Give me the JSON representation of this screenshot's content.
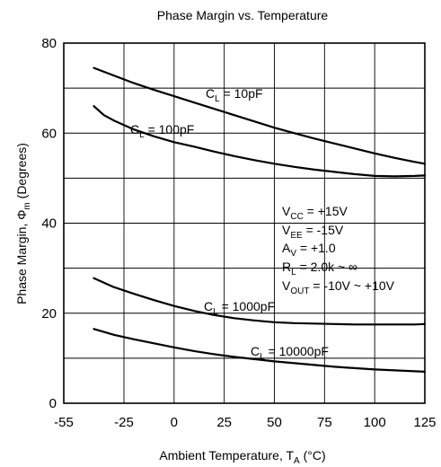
{
  "chart_data": {
    "type": "line",
    "title": "Phase Margin vs. Temperature",
    "xlabel": {
      "main": "Ambient Temperature, T",
      "sub": "A",
      "tail": " (°C)"
    },
    "ylabel": {
      "main": "Phase Margin, Φ",
      "sub": "m",
      "tail": " (Degrees)"
    },
    "xlim": [
      -55,
      125
    ],
    "ylim": [
      0,
      80
    ],
    "xticks": [
      -55,
      -25,
      0,
      25,
      50,
      75,
      100,
      125
    ],
    "yticks": [
      0,
      20,
      40,
      60,
      80
    ],
    "grid": true,
    "series": [
      {
        "name": "CL = 10pF",
        "label": {
          "main": "C",
          "sub": "L",
          "tail": " = 10pF"
        },
        "x": [
          -40,
          -30,
          -20,
          -10,
          0,
          10,
          20,
          30,
          40,
          50,
          60,
          70,
          80,
          90,
          100,
          110,
          120,
          125
        ],
        "y": [
          74.5,
          72.8,
          71.1,
          69.6,
          68.2,
          66.8,
          65.4,
          64.0,
          62.6,
          61.2,
          60.0,
          58.8,
          57.7,
          56.6,
          55.5,
          54.5,
          53.6,
          53.2
        ]
      },
      {
        "name": "CL = 100pF",
        "label": {
          "main": "C",
          "sub": "L",
          "tail": " = 100pF"
        },
        "x": [
          -40,
          -35,
          -30,
          -20,
          -10,
          0,
          10,
          20,
          30,
          40,
          50,
          60,
          70,
          80,
          90,
          100,
          110,
          120,
          125
        ],
        "y": [
          66.0,
          64.0,
          62.8,
          60.8,
          59.3,
          58.0,
          57.0,
          55.9,
          54.9,
          54.0,
          53.2,
          52.5,
          51.9,
          51.4,
          50.9,
          50.5,
          50.4,
          50.5,
          50.6
        ]
      },
      {
        "name": "CL = 1000pF",
        "label": {
          "main": "C",
          "sub": "L",
          "tail": " = 1000pF"
        },
        "x": [
          -40,
          -30,
          -20,
          -10,
          0,
          10,
          20,
          30,
          40,
          50,
          60,
          70,
          80,
          90,
          100,
          110,
          120,
          125
        ],
        "y": [
          27.8,
          25.8,
          24.3,
          22.9,
          21.6,
          20.5,
          19.6,
          18.9,
          18.4,
          18.0,
          17.8,
          17.7,
          17.6,
          17.5,
          17.5,
          17.5,
          17.5,
          17.6
        ]
      },
      {
        "name": "CL = 10000pF",
        "label": {
          "main": "C",
          "sub": "L",
          "tail": " = 10000pF"
        },
        "x": [
          -40,
          -30,
          -20,
          -10,
          0,
          10,
          20,
          30,
          40,
          50,
          60,
          70,
          80,
          90,
          100,
          110,
          120,
          125
        ],
        "y": [
          16.5,
          15.2,
          14.2,
          13.3,
          12.4,
          11.6,
          10.9,
          10.3,
          9.8,
          9.3,
          8.9,
          8.5,
          8.1,
          7.8,
          7.5,
          7.3,
          7.1,
          7.0
        ]
      }
    ],
    "conditions": [
      {
        "main": "V",
        "sub": "CC",
        "tail": " = +15V"
      },
      {
        "main": "V",
        "sub": "EE",
        "tail": " = -15V"
      },
      {
        "main": "A",
        "sub": "V",
        "tail": " = +1.0"
      },
      {
        "main": "R",
        "sub": "L",
        "tail": " = 2.0k ~ ∞"
      },
      {
        "main": "V",
        "sub": "OUT",
        "tail": " = -10V ~ +10V"
      }
    ]
  }
}
